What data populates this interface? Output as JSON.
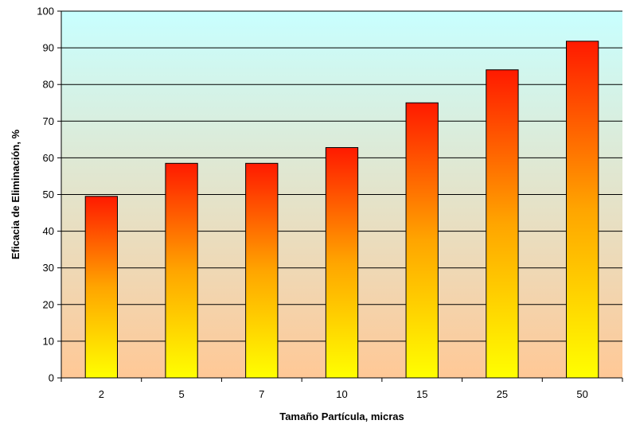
{
  "chart_data": {
    "type": "bar",
    "title": "",
    "xlabel": "Tamaño Partícula, micras",
    "ylabel": "Eficacia de Eliminación, %",
    "categories": [
      "2",
      "5",
      "7",
      "10",
      "15",
      "25",
      "50"
    ],
    "values": [
      49.5,
      58.5,
      58.5,
      62.8,
      75,
      84,
      91.8
    ],
    "ylim": [
      0,
      100
    ],
    "yticks": [
      0,
      10,
      20,
      30,
      40,
      50,
      60,
      70,
      80,
      90,
      100
    ],
    "grid": true,
    "legend": "none",
    "colors": {
      "bar_top": "#ff1a00",
      "bar_mid": "#ffa500",
      "bar_bottom": "#ffff00",
      "plot_bg_top": "#c8ffff",
      "plot_bg_bottom": "#ffc896",
      "bar_outline": "#000000",
      "gridline": "#000000"
    }
  }
}
